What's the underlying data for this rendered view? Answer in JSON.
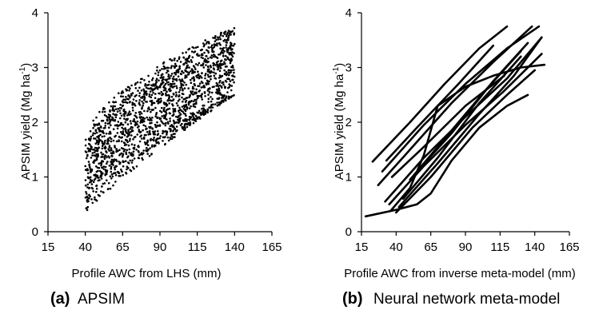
{
  "chart_data": [
    {
      "type": "scatter",
      "panel_letter": "(a)",
      "panel_title": "APSIM",
      "xlabel": "Profile AWC from LHS (mm)",
      "ylabel": "APSIM yield (Mg ha",
      "ylabel_sup": "-1",
      "ylabel_close": ")",
      "xlim": [
        15,
        165
      ],
      "ylim": [
        0,
        4
      ],
      "xticks": [
        15,
        40,
        65,
        90,
        115,
        140,
        165
      ],
      "yticks": [
        0,
        1,
        2,
        3,
        4
      ],
      "grid": false,
      "marker_color": "#000000",
      "description_series": [
        {
          "x_start": 40,
          "y_start": 0.3,
          "x_end": 140,
          "y_end": 2.5
        },
        {
          "x_start": 40,
          "y_start": 0.5,
          "x_end": 140,
          "y_end": 2.5
        },
        {
          "x_start": 40,
          "y_start": 0.7,
          "x_end": 140,
          "y_end": 2.8
        },
        {
          "x_start": 40,
          "y_start": 0.9,
          "x_end": 140,
          "y_end": 3.0
        },
        {
          "x_start": 40,
          "y_start": 1.1,
          "x_end": 140,
          "y_end": 3.2
        },
        {
          "x_start": 40,
          "y_start": 1.3,
          "x_end": 140,
          "y_end": 3.4
        },
        {
          "x_start": 40,
          "y_start": 1.5,
          "x_end": 140,
          "y_end": 3.6
        },
        {
          "x_start": 40,
          "y_start": 1.7,
          "x_end": 140,
          "y_end": 3.75
        }
      ]
    },
    {
      "type": "line",
      "panel_letter": "(b)",
      "panel_title": "Neural network meta-model",
      "xlabel": "Profile AWC from inverse meta-model (mm)",
      "ylabel": "APSIM yield (Mg ha",
      "ylabel_sup": "-1",
      "ylabel_close": ")",
      "xlim": [
        15,
        165
      ],
      "ylim": [
        0,
        4
      ],
      "xticks": [
        15,
        40,
        65,
        90,
        115,
        140,
        165
      ],
      "yticks": [
        0,
        1,
        2,
        3,
        4
      ],
      "grid": false,
      "line_color": "#000000",
      "series": [
        {
          "x": [
            18,
            40,
            55,
            65,
            80,
            100,
            120,
            135
          ],
          "y": [
            0.28,
            0.4,
            0.5,
            0.7,
            1.3,
            1.9,
            2.3,
            2.5
          ]
        },
        {
          "x": [
            36,
            50,
            60,
            70,
            90,
            110,
            130,
            147
          ],
          "y": [
            0.38,
            0.8,
            1.4,
            2.3,
            2.65,
            2.85,
            3.0,
            3.05
          ]
        },
        {
          "x": [
            23,
            50,
            75,
            100,
            120
          ],
          "y": [
            1.28,
            2.0,
            2.7,
            3.35,
            3.75
          ]
        },
        {
          "x": [
            27,
            50,
            80,
            110,
            138
          ],
          "y": [
            0.85,
            1.5,
            2.35,
            3.1,
            3.75
          ]
        },
        {
          "x": [
            30,
            60,
            90,
            120,
            143
          ],
          "y": [
            1.1,
            1.95,
            2.7,
            3.35,
            3.75
          ]
        },
        {
          "x": [
            32,
            60,
            90,
            120,
            145
          ],
          "y": [
            0.55,
            1.35,
            2.1,
            2.8,
            3.55
          ]
        },
        {
          "x": [
            33,
            55,
            85,
            110
          ],
          "y": [
            1.3,
            1.9,
            2.7,
            3.4
          ]
        },
        {
          "x": [
            35,
            60,
            90,
            117,
            145
          ],
          "y": [
            0.5,
            1.2,
            1.95,
            2.55,
            3.25
          ]
        },
        {
          "x": [
            37,
            60,
            90,
            118
          ],
          "y": [
            1.0,
            1.55,
            2.3,
            2.85
          ]
        },
        {
          "x": [
            40,
            65,
            95,
            120,
            140
          ],
          "y": [
            0.35,
            1.0,
            1.9,
            2.5,
            2.95
          ]
        },
        {
          "x": [
            42,
            70,
            100,
            125,
            145
          ],
          "y": [
            0.45,
            1.25,
            2.15,
            2.85,
            3.55
          ]
        },
        {
          "x": [
            45,
            70,
            100,
            130
          ],
          "y": [
            0.6,
            1.35,
            2.35,
            3.2
          ]
        },
        {
          "x": [
            50,
            75,
            105,
            130
          ],
          "y": [
            0.95,
            1.7,
            2.6,
            3.3
          ]
        },
        {
          "x": [
            55,
            80,
            110,
            135
          ],
          "y": [
            1.1,
            1.8,
            2.75,
            3.45
          ]
        }
      ]
    }
  ]
}
